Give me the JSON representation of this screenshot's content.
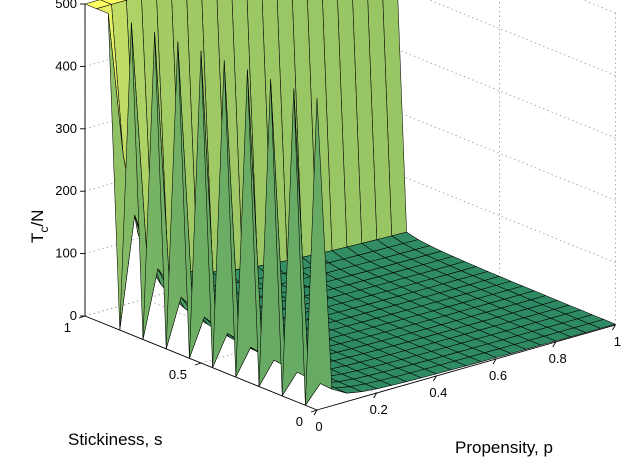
{
  "chart_data": {
    "type": "surface",
    "title": "",
    "xlabel": "Propensity, p",
    "ylabel": "Stickiness, s",
    "zlabel_base": "T",
    "zlabel_sub": "c",
    "zlabel_tail": "/N",
    "xlim": [
      0,
      1
    ],
    "ylim": [
      0,
      1
    ],
    "zlim": [
      0,
      500
    ],
    "x_ticks": [
      "0",
      "0.2",
      "0.4",
      "0.6",
      "0.8",
      "1"
    ],
    "y_ticks": [
      "0",
      "0.5",
      "1"
    ],
    "z_ticks": [
      "0",
      "100",
      "200",
      "300",
      "400",
      "500"
    ],
    "grid": true,
    "grid_resolution": 20,
    "colormap": "summer",
    "colors": {
      "low": "#2d8a63",
      "high": "#ffff66",
      "edge": "#000000"
    },
    "value_cap": 500,
    "rows_at_cap": [
      "s = 0.95",
      "s = 1.00"
    ],
    "cells_near_p0_s_below_0.9": "alternating 0 and 500 (checkerboard spikes)",
    "decay_along_p": "T_c/N ≈ 4 / (3·p·(1 − s))",
    "sample_values": [
      {
        "p": 0.05,
        "s": 0.5,
        "value": 53
      },
      {
        "p": 0.1,
        "s": 0.5,
        "value": 27
      },
      {
        "p": 0.3,
        "s": 0.5,
        "value": 9
      },
      {
        "p": 0.05,
        "s": 0.9,
        "value": 267
      },
      {
        "p": 0.2,
        "s": 0.9,
        "value": 67
      },
      {
        "p": 1.0,
        "s": 0.9,
        "value": 13
      }
    ]
  }
}
